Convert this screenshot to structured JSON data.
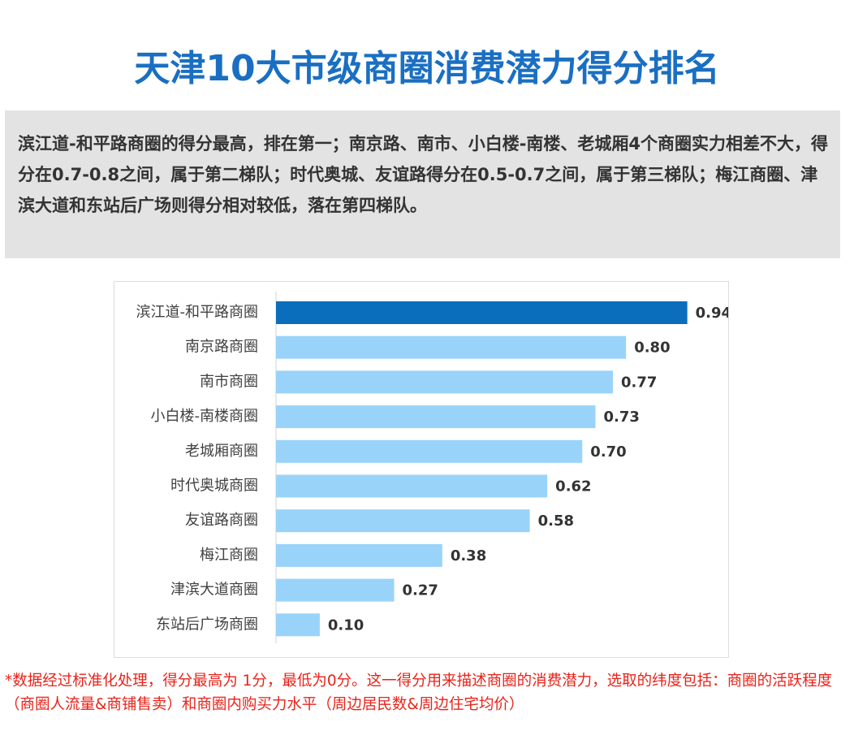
{
  "title": "天津10大市级商圈消费潜力得分排名",
  "summary": "滨江道-和平路商圈的得分最高，排在第一；南京路、南市、小白楼-南楼、老城厢4个商圈实力相差不大，得分在0.7-0.8之间，属于第二梯队；时代奥城、友谊路得分在0.5-0.7之间，属于第三梯队；梅江商圈、津滨大道和东站后广场则得分相对较低，落在第四梯队。",
  "footnote": "*数据经过标准化处理，得分最高为 1分，最低为0分。这一得分用来描述商圈的消费潜力，选取的纬度包括：商圈的活跃程度（商圈人流量&商铺售卖）和商圈内购买力水平（周边居民数&周边住宅均价）",
  "colors": {
    "title": "#1a6fc2",
    "highlight_bar": "#0a6ebd",
    "bar": "#99d3fa",
    "footnote": "#e8231a",
    "summary_bg": "#e3e3e3"
  },
  "chart_data": {
    "type": "bar",
    "orientation": "horizontal",
    "categories": [
      "滨江道-和平路商圈",
      "南京路商圈",
      "南市商圈",
      "小白楼-南楼商圈",
      "老城厢商圈",
      "时代奥城商圈",
      "友谊路商圈",
      "梅江商圈",
      "津滨大道商圈",
      "东站后广场商圈"
    ],
    "values": [
      0.94,
      0.8,
      0.77,
      0.73,
      0.7,
      0.62,
      0.58,
      0.38,
      0.27,
      0.1
    ],
    "value_labels": [
      "0.94",
      "0.80",
      "0.77",
      "0.73",
      "0.70",
      "0.62",
      "0.58",
      "0.38",
      "0.27",
      "0.10"
    ],
    "highlight_index": 0,
    "xlim": [
      0,
      1
    ],
    "grid": false,
    "legend": "none"
  }
}
